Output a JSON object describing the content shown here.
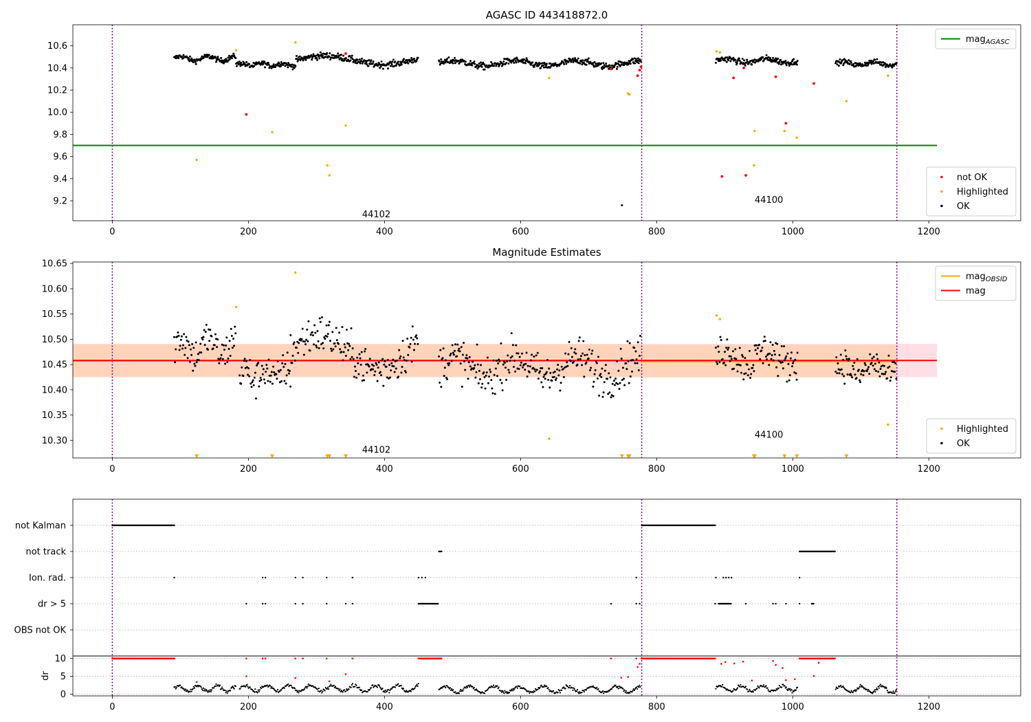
{
  "chart_data": [
    {
      "type": "scatter",
      "title": "AGASC ID 443418872.0",
      "xlim": [
        -58,
        1335
      ],
      "ylim": [
        9.02,
        10.79
      ],
      "xticks": [
        0,
        200,
        400,
        600,
        800,
        1000,
        1200
      ],
      "yticks": [
        9.2,
        9.4,
        9.6,
        9.8,
        10.0,
        10.2,
        10.4,
        10.6
      ],
      "vlines": [
        0,
        778,
        1153
      ],
      "vline_color": "#800080",
      "obsid_labels": [
        {
          "text": "44102",
          "x": 388,
          "y": 9.05
        },
        {
          "text": "44100",
          "x": 965,
          "y": 9.18
        }
      ],
      "series": [
        {
          "name": "mag",
          "sub": "AGASC",
          "kind": "hline",
          "color": "#008000",
          "y": 9.7,
          "x_range": [
            -58,
            1212
          ]
        },
        {
          "name": "OK",
          "kind": "dots",
          "color": "#000000",
          "segments": [
            {
              "x0": 91,
              "x1": 182,
              "step": 0.8,
              "mean": 10.485,
              "amp": 0.02,
              "period": 40,
              "noise": 0.012
            },
            {
              "x0": 182,
              "x1": 270,
              "step": 0.8,
              "mean": 10.43,
              "amp": 0.012,
              "period": 30,
              "noise": 0.012
            },
            {
              "x0": 270,
              "x1": 450,
              "step": 0.8,
              "mean": 10.47,
              "amp": 0.04,
              "period": 170,
              "noise": 0.015
            },
            {
              "x0": 480,
              "x1": 777,
              "step": 0.8,
              "mean": 10.44,
              "amp": 0.025,
              "period": 90,
              "noise": 0.015
            },
            {
              "x0": 887,
              "x1": 1007,
              "step": 0.8,
              "mean": 10.465,
              "amp": 0.018,
              "period": 60,
              "noise": 0.014
            },
            {
              "x0": 1063,
              "x1": 1153,
              "step": 0.8,
              "mean": 10.44,
              "amp": 0.015,
              "period": 45,
              "noise": 0.012
            }
          ],
          "points": [
            {
              "x": 749,
              "y": 9.16
            }
          ]
        },
        {
          "name": "Highlighted",
          "kind": "points",
          "color": "#ffa500",
          "points": [
            {
              "x": 124,
              "y": 9.57
            },
            {
              "x": 182,
              "y": 10.56
            },
            {
              "x": 235,
              "y": 9.82
            },
            {
              "x": 269,
              "y": 10.63
            },
            {
              "x": 316,
              "y": 9.52
            },
            {
              "x": 319,
              "y": 9.43
            },
            {
              "x": 343,
              "y": 9.88
            },
            {
              "x": 642,
              "y": 10.31
            },
            {
              "x": 758,
              "y": 10.17
            },
            {
              "x": 760,
              "y": 10.16
            },
            {
              "x": 888,
              "y": 10.55
            },
            {
              "x": 893,
              "y": 10.54
            },
            {
              "x": 943,
              "y": 9.52
            },
            {
              "x": 944,
              "y": 9.83
            },
            {
              "x": 988,
              "y": 9.83
            },
            {
              "x": 1006,
              "y": 9.77
            },
            {
              "x": 1079,
              "y": 10.1
            },
            {
              "x": 1140,
              "y": 10.33
            }
          ]
        },
        {
          "name": "not OK",
          "kind": "points",
          "color": "#ff0000",
          "points": [
            {
              "x": 197,
              "y": 9.98
            },
            {
              "x": 343,
              "y": 10.53
            },
            {
              "x": 733,
              "y": 10.39
            },
            {
              "x": 772,
              "y": 10.33
            },
            {
              "x": 775,
              "y": 10.38
            },
            {
              "x": 777,
              "y": 10.41
            },
            {
              "x": 896,
              "y": 9.42
            },
            {
              "x": 913,
              "y": 10.31
            },
            {
              "x": 928,
              "y": 10.4
            },
            {
              "x": 931,
              "y": 9.43
            },
            {
              "x": 975,
              "y": 10.32
            },
            {
              "x": 990,
              "y": 9.9
            },
            {
              "x": 1031,
              "y": 10.26
            }
          ]
        }
      ],
      "legends": [
        {
          "place": "top-right",
          "entries": [
            {
              "label": "mag",
              "sub": "AGASC",
              "marker": "line",
              "color": "#008000"
            }
          ]
        },
        {
          "place": "lower-right",
          "entries": [
            {
              "label": "not OK",
              "marker": "dot",
              "color": "#ff0000"
            },
            {
              "label": "Highlighted",
              "marker": "dot",
              "color": "#ffa500"
            },
            {
              "label": "OK",
              "marker": "dot",
              "color": "#000000"
            }
          ]
        }
      ]
    },
    {
      "type": "scatter",
      "title": "Magnitude Estimates",
      "xlim": [
        -58,
        1335
      ],
      "ylim": [
        10.265,
        10.653
      ],
      "xticks": [
        0,
        200,
        400,
        600,
        800,
        1000,
        1200
      ],
      "yticks": [
        10.3,
        10.35,
        10.4,
        10.45,
        10.5,
        10.55,
        10.6,
        10.65
      ],
      "vlines": [
        0,
        778,
        1153
      ],
      "vline_color": "#800080",
      "obsid_labels": [
        {
          "text": "44102",
          "x": 388,
          "y": 10.275
        },
        {
          "text": "44100",
          "x": 965,
          "y": 10.305
        }
      ],
      "bands": [
        {
          "x_range": [
            -58,
            1212
          ],
          "y_range": [
            10.425,
            10.491
          ],
          "color": "#ffc0cb",
          "opacity": 0.5
        },
        {
          "x_range": [
            -58,
            778
          ],
          "y_range": [
            10.425,
            10.49
          ],
          "color": "#ffa500",
          "opacity": 0.18
        },
        {
          "x_range": [
            778,
            1153
          ],
          "y_range": [
            10.424,
            10.489
          ],
          "color": "#ffa500",
          "opacity": 0.18
        }
      ],
      "series": [
        {
          "name": "mag",
          "sub": "OBSID",
          "kind": "steps",
          "color": "#ffa500",
          "steps": [
            {
              "x_range": [
                -58,
                778
              ],
              "y": 10.457
            },
            {
              "x_range": [
                778,
                1153
              ],
              "y": 10.456
            }
          ]
        },
        {
          "name": "mag",
          "kind": "hline",
          "color": "#ff0000",
          "y": 10.458,
          "x_range": [
            -58,
            1212
          ]
        },
        {
          "name": "OK",
          "kind": "dots",
          "color": "#000000",
          "segments": [
            {
              "x0": 91,
              "x1": 182,
              "step": 1.1,
              "mean": 10.485,
              "amp": 0.018,
              "period": 40,
              "noise": 0.018
            },
            {
              "x0": 187,
              "x1": 262,
              "step": 1.1,
              "mean": 10.43,
              "amp": 0.012,
              "period": 30,
              "noise": 0.018
            },
            {
              "x0": 262,
              "x1": 450,
              "step": 1.1,
              "mean": 10.475,
              "amp": 0.035,
              "period": 170,
              "noise": 0.02
            },
            {
              "x0": 480,
              "x1": 777,
              "step": 1.1,
              "mean": 10.445,
              "amp": 0.02,
              "period": 90,
              "noise": 0.02
            },
            {
              "x0": 887,
              "x1": 1007,
              "step": 1.1,
              "mean": 10.465,
              "amp": 0.015,
              "period": 60,
              "noise": 0.018
            },
            {
              "x0": 1063,
              "x1": 1153,
              "step": 1.1,
              "mean": 10.44,
              "amp": 0.012,
              "period": 45,
              "noise": 0.016
            }
          ],
          "points": []
        },
        {
          "name": "Highlighted",
          "kind": "points",
          "color": "#ffa500",
          "points": [
            {
              "x": 182,
              "y": 10.564
            },
            {
              "x": 269,
              "y": 10.632
            },
            {
              "x": 642,
              "y": 10.303
            },
            {
              "x": 888,
              "y": 10.547
            },
            {
              "x": 893,
              "y": 10.54
            },
            {
              "x": 1140,
              "y": 10.331
            }
          ]
        },
        {
          "name": "Highlighted below axis",
          "kind": "markers",
          "shape": "triangle-down",
          "color": "#ffa500",
          "y": 10.268,
          "x": [
            124,
            235,
            316,
            319,
            343,
            749,
            758,
            760,
            943,
            944,
            988,
            1006,
            1079
          ]
        }
      ],
      "legends": [
        {
          "place": "top-right",
          "entries": [
            {
              "label": "mag",
              "sub": "OBSID",
              "marker": "line",
              "color": "#ffa500"
            },
            {
              "label": "mag",
              "marker": "line",
              "color": "#ff0000"
            }
          ]
        },
        {
          "place": "lower-right",
          "entries": [
            {
              "label": "Highlighted",
              "marker": "dot",
              "color": "#ffa500"
            },
            {
              "label": "OK",
              "marker": "dot",
              "color": "#000000"
            }
          ]
        }
      ]
    },
    {
      "type": "scatter",
      "title": "",
      "xlim": [
        -58,
        1335
      ],
      "xticks": [
        0,
        200,
        400,
        600,
        800,
        1000,
        1200
      ],
      "vlines": [
        0,
        778,
        1153
      ],
      "vline_color": "#800080",
      "flags": {
        "rows": [
          "not Kalman",
          "not track",
          "Ion. rad.",
          "dr > 5",
          "OBS not OK"
        ],
        "ranges": {
          "not Kalman": [
            [
              0,
              91
            ],
            [
              778,
              886
            ]
          ],
          "not track": [
            [
              480,
              484
            ],
            [
              1010,
              1063
            ]
          ],
          "Ion. rad.": [],
          "dr > 5": [
            [
              450,
              479
            ],
            [
              891,
              910
            ],
            [
              1028,
              1031
            ]
          ],
          "OBS not OK": []
        },
        "points": {
          "not Kalman": [],
          "not track": [],
          "Ion. rad.": [
            91,
            221,
            225,
            269,
            280,
            315,
            353,
            450,
            455,
            460,
            770,
            887,
            898,
            902,
            906,
            910,
            1010
          ],
          "dr > 5": [
            197,
            221,
            225,
            269,
            280,
            315,
            343,
            353,
            733,
            770,
            775,
            886,
            931,
            971,
            975,
            990,
            1010
          ],
          "OBS not OK": []
        }
      },
      "dr": {
        "ylabel": "dr",
        "ylim": [
          -0.5,
          10.7
        ],
        "yticks": [
          0,
          5,
          10
        ],
        "clip_value": 10,
        "ranges": [
          [
            0,
            91
          ],
          [
            450,
            484
          ],
          [
            778,
            886
          ],
          [
            1010,
            1063
          ]
        ],
        "points": [
          {
            "x": 197,
            "y": 10
          },
          {
            "x": 221,
            "y": 10
          },
          {
            "x": 225,
            "y": 10
          },
          {
            "x": 269,
            "y": 10
          },
          {
            "x": 280,
            "y": 10
          },
          {
            "x": 315,
            "y": 10
          },
          {
            "x": 353,
            "y": 10
          },
          {
            "x": 733,
            "y": 10
          },
          {
            "x": 770,
            "y": 10
          },
          {
            "x": 124,
            "y": 3.4
          },
          {
            "x": 197,
            "y": 5.0
          },
          {
            "x": 269,
            "y": 4.5
          },
          {
            "x": 319,
            "y": 3.6
          },
          {
            "x": 343,
            "y": 5.6
          },
          {
            "x": 748,
            "y": 4.6
          },
          {
            "x": 758,
            "y": 4.8
          },
          {
            "x": 772,
            "y": 7.6
          },
          {
            "x": 775,
            "y": 8.5
          },
          {
            "x": 895,
            "y": 8.5
          },
          {
            "x": 901,
            "y": 9.0
          },
          {
            "x": 914,
            "y": 8.6
          },
          {
            "x": 927,
            "y": 9.1
          },
          {
            "x": 940,
            "y": 3.8
          },
          {
            "x": 971,
            "y": 9.3
          },
          {
            "x": 975,
            "y": 8.2
          },
          {
            "x": 985,
            "y": 7.3
          },
          {
            "x": 990,
            "y": 3.9
          },
          {
            "x": 1003,
            "y": 4.2
          },
          {
            "x": 1031,
            "y": 5.1
          },
          {
            "x": 1038,
            "y": 8.8
          }
        ],
        "black_segments": [
          {
            "x0": 91,
            "x1": 182,
            "base": 1.5,
            "amp": 0.8,
            "period": 28
          },
          {
            "x0": 187,
            "x1": 450,
            "base": 1.6,
            "amp": 0.9,
            "period": 32
          },
          {
            "x0": 480,
            "x1": 777,
            "base": 1.3,
            "amp": 0.9,
            "period": 36
          },
          {
            "x0": 887,
            "x1": 1007,
            "base": 1.6,
            "amp": 0.8,
            "period": 30
          },
          {
            "x0": 1063,
            "x1": 1153,
            "base": 1.3,
            "amp": 0.9,
            "period": 30
          }
        ]
      }
    }
  ]
}
